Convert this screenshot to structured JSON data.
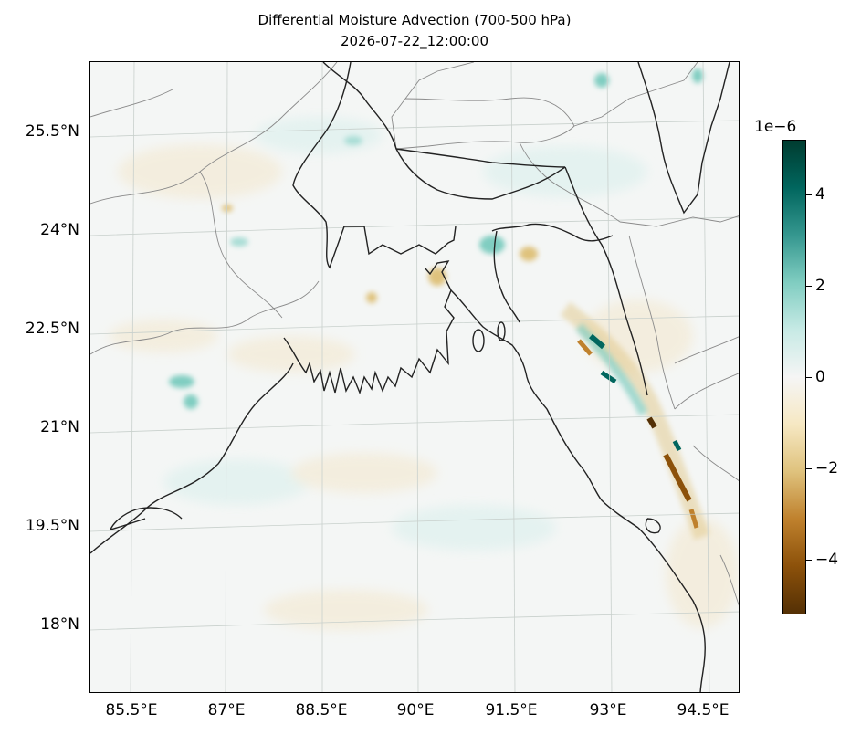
{
  "title": "Differential Moisture Advection (700-500 hPa)",
  "subtitle": "2026-07-22_12:00:00",
  "lat_labels": [
    "25.5°N",
    "24°N",
    "22.5°N",
    "21°N",
    "19.5°N",
    "18°N"
  ],
  "lon_labels": [
    "85.5°E",
    "87°E",
    "88.5°E",
    "90°E",
    "91.5°E",
    "93°E",
    "94.5°E"
  ],
  "colorbar": {
    "exponent_label": "1e−6",
    "tick_labels": [
      "4",
      "2",
      "0",
      "−2",
      "−4"
    ],
    "tick_values": [
      4,
      2,
      0,
      -2,
      -4
    ],
    "range": [
      -5.2,
      5.2
    ],
    "colormap": "BrBG",
    "stops": [
      "#543005",
      "#8c510a",
      "#bf812d",
      "#dfc27d",
      "#f6e8c3",
      "#f5f5f5",
      "#c7eae5",
      "#80cdc1",
      "#35978f",
      "#01665e",
      "#003c30"
    ]
  },
  "colors": {
    "coastline": "#222222",
    "borders": "#8a8a8a",
    "gridlines": "#c8d0cc",
    "ocean": "#f4f6f5"
  }
}
